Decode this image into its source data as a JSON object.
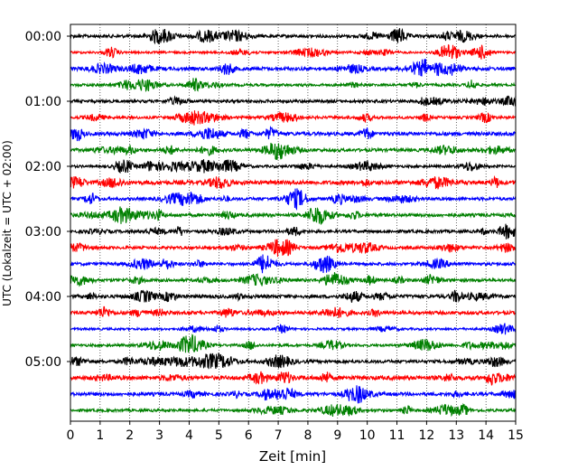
{
  "chart_data": {
    "type": "line",
    "chart_kind": "helicorder-seismogram",
    "xlabel": "Zeit  [min]",
    "ylabel": "UTC (Lokalzeit = UTC + 02:00)",
    "xlim": [
      0,
      15
    ],
    "x_ticks": [
      0,
      1,
      2,
      3,
      4,
      5,
      6,
      7,
      8,
      9,
      10,
      11,
      12,
      13,
      14,
      15
    ],
    "x_tick_labels": [
      "0",
      "1",
      "2",
      "3",
      "4",
      "5",
      "6",
      "7",
      "8",
      "9",
      "10",
      "11",
      "12",
      "13",
      "14",
      "15"
    ],
    "y_tick_labels": [
      "00:00",
      "01:00",
      "02:00",
      "03:00",
      "04:00",
      "05:00"
    ],
    "grid": "vertical dotted lines at each minute",
    "line_colors": [
      "#000000",
      "#ff0000",
      "#0000ff",
      "#008000"
    ],
    "trace_start_times": [
      "00:00",
      "00:15",
      "00:30",
      "00:45",
      "01:00",
      "01:15",
      "01:30",
      "01:45",
      "02:00",
      "02:15",
      "02:30",
      "02:45",
      "03:00",
      "03:15",
      "03:30",
      "03:45",
      "04:00",
      "04:15",
      "04:30",
      "04:45",
      "05:00",
      "05:15",
      "05:30",
      "05:45"
    ],
    "minutes_per_trace": 15
  }
}
